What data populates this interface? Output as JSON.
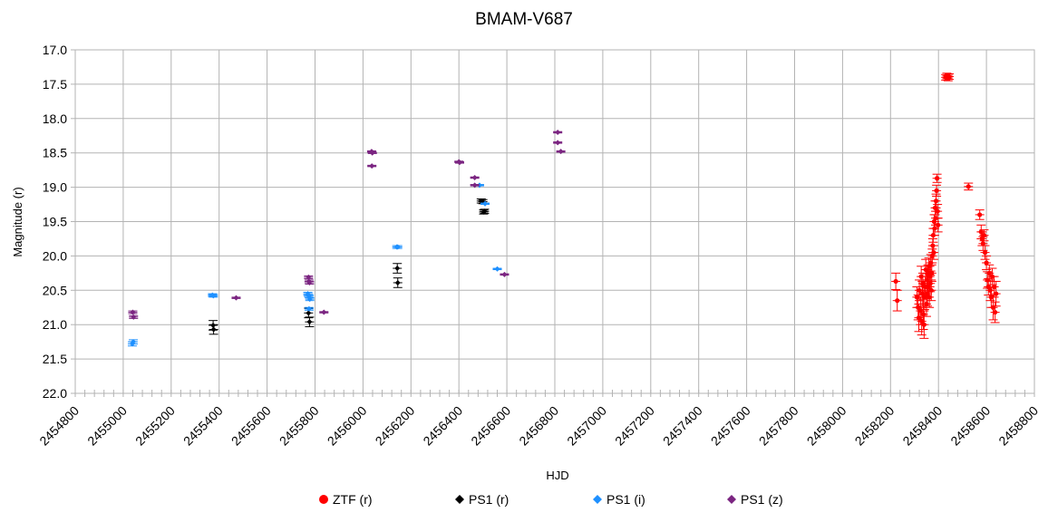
{
  "chart_data": {
    "type": "scatter",
    "title": "BMAM-V687",
    "xlabel": "HJD",
    "ylabel": "Magnitude (r)",
    "xlim": [
      2454800,
      2458800
    ],
    "ylim": [
      17.0,
      22.0
    ],
    "y_reversed": true,
    "x_ticks": [
      "2454800",
      "2455000",
      "2455200",
      "2455400",
      "2455600",
      "2455800",
      "2456000",
      "2456200",
      "2456400",
      "2456600",
      "2456800",
      "2457000",
      "2457200",
      "2457400",
      "2457600",
      "2457800",
      "2458000",
      "2458200",
      "2458400",
      "2458600",
      "2458800"
    ],
    "y_ticks": [
      "17.0",
      "17.5",
      "18.0",
      "18.5",
      "19.0",
      "19.5",
      "20.0",
      "20.5",
      "21.0",
      "21.5",
      "22.0"
    ],
    "grid": true,
    "legend_position": "bottom",
    "series": [
      {
        "name": "ZTF (r)",
        "color": "#ff0000",
        "marker": "circle",
        "points": [
          [
            2458222,
            20.37,
            0.12
          ],
          [
            2458228,
            20.65,
            0.15
          ],
          [
            2458310,
            20.6,
            0.15
          ],
          [
            2458315,
            20.75,
            0.18
          ],
          [
            2458318,
            20.9,
            0.2
          ],
          [
            2458320,
            20.5,
            0.15
          ],
          [
            2458325,
            20.8,
            0.2
          ],
          [
            2458328,
            20.3,
            0.15
          ],
          [
            2458330,
            20.95,
            0.2
          ],
          [
            2458332,
            20.55,
            0.18
          ],
          [
            2458335,
            20.4,
            0.15
          ],
          [
            2458337,
            20.85,
            0.22
          ],
          [
            2458340,
            21.0,
            0.2
          ],
          [
            2458342,
            20.6,
            0.18
          ],
          [
            2458345,
            20.45,
            0.15
          ],
          [
            2458347,
            20.2,
            0.15
          ],
          [
            2458350,
            20.7,
            0.18
          ],
          [
            2458352,
            20.35,
            0.15
          ],
          [
            2458354,
            20.55,
            0.18
          ],
          [
            2458356,
            20.25,
            0.12
          ],
          [
            2458358,
            20.45,
            0.15
          ],
          [
            2458360,
            20.15,
            0.12
          ],
          [
            2458362,
            20.6,
            0.15
          ],
          [
            2458364,
            20.3,
            0.15
          ],
          [
            2458366,
            20.4,
            0.12
          ],
          [
            2458368,
            20.1,
            0.12
          ],
          [
            2458370,
            20.5,
            0.15
          ],
          [
            2458372,
            20.25,
            0.12
          ],
          [
            2458374,
            20.0,
            0.1
          ],
          [
            2458376,
            19.85,
            0.1
          ],
          [
            2458378,
            19.7,
            0.1
          ],
          [
            2458380,
            19.95,
            0.1
          ],
          [
            2458382,
            19.5,
            0.1
          ],
          [
            2458384,
            19.6,
            0.1
          ],
          [
            2458386,
            19.3,
            0.1
          ],
          [
            2458388,
            19.45,
            0.1
          ],
          [
            2458390,
            19.2,
            0.1
          ],
          [
            2458392,
            19.05,
            0.08
          ],
          [
            2458394,
            18.87,
            0.06
          ],
          [
            2458396,
            19.35,
            0.1
          ],
          [
            2458398,
            19.55,
            0.1
          ],
          [
            2458430,
            17.4,
            0.04
          ],
          [
            2458435,
            17.38,
            0.04
          ],
          [
            2458440,
            17.41,
            0.04
          ],
          [
            2458445,
            17.39,
            0.04
          ],
          [
            2458525,
            18.99,
            0.05
          ],
          [
            2458572,
            19.4,
            0.07
          ],
          [
            2458578,
            19.65,
            0.1
          ],
          [
            2458582,
            19.75,
            0.1
          ],
          [
            2458586,
            19.82,
            0.1
          ],
          [
            2458590,
            19.7,
            0.08
          ],
          [
            2458594,
            19.95,
            0.1
          ],
          [
            2458600,
            20.1,
            0.1
          ],
          [
            2458604,
            20.35,
            0.12
          ],
          [
            2458608,
            20.45,
            0.12
          ],
          [
            2458612,
            20.25,
            0.12
          ],
          [
            2458616,
            20.5,
            0.15
          ],
          [
            2458620,
            20.6,
            0.15
          ],
          [
            2458624,
            20.3,
            0.12
          ],
          [
            2458628,
            20.75,
            0.18
          ],
          [
            2458632,
            20.45,
            0.15
          ],
          [
            2458636,
            20.82,
            0.15
          ],
          [
            2458640,
            20.55,
            0.18
          ]
        ]
      },
      {
        "name": "PS1 (r)",
        "color": "#000000",
        "marker": "diamond",
        "points": [
          [
            2455375,
            21.01,
            0.07
          ],
          [
            2455377,
            21.07,
            0.07
          ],
          [
            2455773,
            20.83,
            0.07
          ],
          [
            2455777,
            20.96,
            0.07
          ],
          [
            2456143,
            20.18,
            0.07
          ],
          [
            2456145,
            20.39,
            0.07
          ],
          [
            2456493,
            19.2,
            0.03
          ],
          [
            2456500,
            19.21,
            0.03
          ],
          [
            2456503,
            19.36,
            0.03
          ],
          [
            2456507,
            19.35,
            0.03
          ]
        ]
      },
      {
        "name": "PS1 (i)",
        "color": "#1e90ff",
        "marker": "diamond",
        "points": [
          [
            2455038,
            21.28,
            0.03
          ],
          [
            2455042,
            21.25,
            0.03
          ],
          [
            2455372,
            20.57,
            0.02
          ],
          [
            2455376,
            20.58,
            0.02
          ],
          [
            2455770,
            20.55,
            0.02
          ],
          [
            2455772,
            20.57,
            0.02
          ],
          [
            2455776,
            20.59,
            0.02
          ],
          [
            2455778,
            20.63,
            0.02
          ],
          [
            2455775,
            20.77,
            0.02
          ],
          [
            2456141,
            19.87,
            0.02
          ],
          [
            2456145,
            19.87,
            0.02
          ],
          [
            2456486,
            18.97,
            0.01
          ],
          [
            2456509,
            19.24,
            0.01
          ],
          [
            2456560,
            20.19,
            0.01
          ]
        ]
      },
      {
        "name": "PS1 (z)",
        "color": "#7b2581",
        "marker": "diamond",
        "points": [
          [
            2455040,
            20.82,
            0.02
          ],
          [
            2455043,
            20.89,
            0.02
          ],
          [
            2455471,
            20.61,
            0.01
          ],
          [
            2455773,
            20.31,
            0.02
          ],
          [
            2455775,
            20.37,
            0.02
          ],
          [
            2455777,
            20.39,
            0.02
          ],
          [
            2455837,
            20.82,
            0.01
          ],
          [
            2456036,
            18.48,
            0.01
          ],
          [
            2456039,
            18.5,
            0.01
          ],
          [
            2456037,
            18.69,
            0.01
          ],
          [
            2456400,
            18.63,
            0.01
          ],
          [
            2456403,
            18.64,
            0.01
          ],
          [
            2456466,
            18.86,
            0.01
          ],
          [
            2456466,
            18.97,
            0.01
          ],
          [
            2456590,
            20.27,
            0.01
          ],
          [
            2456812,
            18.2,
            0.01
          ],
          [
            2456812,
            18.35,
            0.01
          ],
          [
            2456825,
            18.48,
            0.01
          ]
        ]
      }
    ]
  }
}
